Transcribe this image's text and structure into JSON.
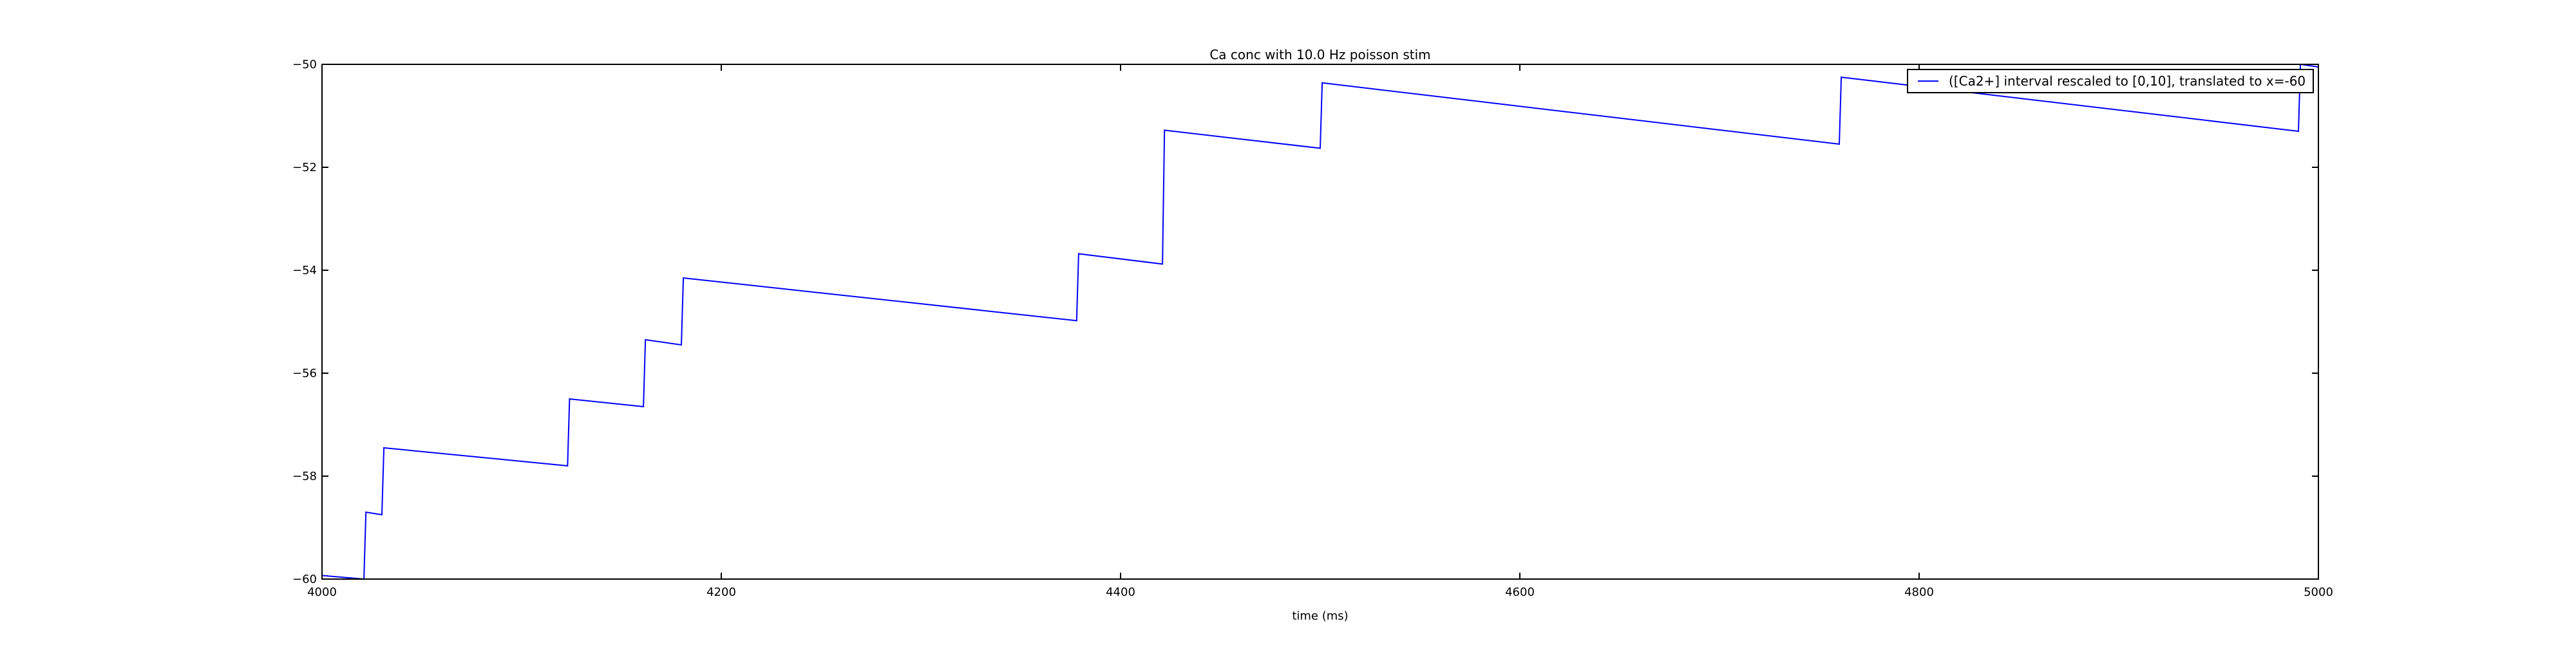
{
  "chart_data": {
    "type": "line",
    "title": "Ca conc with 10.0 Hz poisson stim",
    "xlabel": "time (ms)",
    "ylabel": "",
    "xlim": [
      4000,
      5000
    ],
    "ylim": [
      -60,
      -50
    ],
    "xticks": [
      4000,
      4200,
      4400,
      4600,
      4800,
      5000
    ],
    "yticks": [
      -60,
      -58,
      -56,
      -54,
      -52,
      -50
    ],
    "xtick_labels": [
      "4000",
      "4200",
      "4400",
      "4600",
      "4800",
      "5000"
    ],
    "ytick_labels": [
      "−60",
      "−58",
      "−56",
      "−54",
      "−52",
      "−50"
    ],
    "grid": false,
    "legend_position": "upper-right",
    "series": [
      {
        "name": "([Ca2+] interval rescaled to [0,10], translated to x=-60",
        "color": "#0000ff",
        "x": [
          4000,
          4021,
          4022,
          4030,
          4031,
          4123,
          4124,
          4161,
          4162,
          4180,
          4181,
          4378,
          4379,
          4421,
          4422,
          4500,
          4501,
          4760,
          4761,
          4990,
          4991,
          5000
        ],
        "y": [
          -59.93,
          -60.0,
          -58.7,
          -58.75,
          -57.45,
          -57.8,
          -56.5,
          -56.65,
          -55.35,
          -55.45,
          -54.15,
          -54.98,
          -53.68,
          -53.88,
          -51.28,
          -51.63,
          -50.36,
          -51.55,
          -50.25,
          -51.3,
          -50.0,
          -50.05
        ]
      }
    ]
  }
}
